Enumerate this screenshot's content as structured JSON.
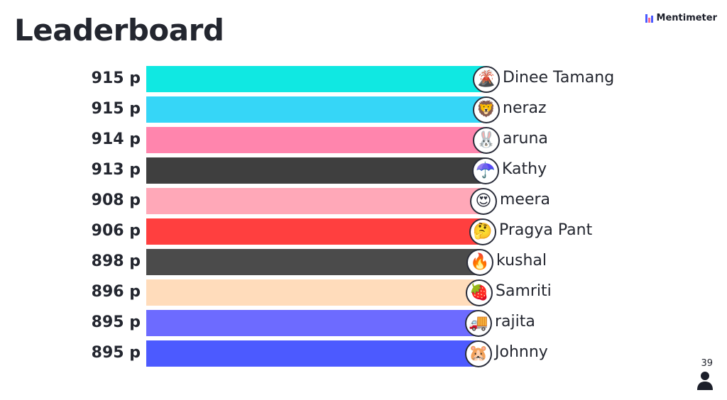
{
  "page": {
    "title": "Leaderboard",
    "brand": "Mentimeter",
    "participant_count": "39",
    "participant_icon": "person-icon"
  },
  "leaderboard": [
    {
      "score": "915 p",
      "name": "Dinee Tamang",
      "emoji": "🌋",
      "avatar_icon": "volcano-icon",
      "color": "#10e8e2",
      "bar_fraction": 1.0
    },
    {
      "score": "915 p",
      "name": "neraz",
      "emoji": "🦁",
      "avatar_icon": "lion-icon",
      "color": "#36d6f7",
      "bar_fraction": 1.0
    },
    {
      "score": "914 p",
      "name": "aruna",
      "emoji": "🐰",
      "avatar_icon": "rabbit-icon",
      "color": "#ff85ad",
      "bar_fraction": 0.999
    },
    {
      "score": "913 p",
      "name": "Kathy",
      "emoji": "☂️",
      "avatar_icon": "umbrella-icon",
      "color": "#3f3f3f",
      "bar_fraction": 0.998
    },
    {
      "score": "908 p",
      "name": "meera",
      "emoji": "😍",
      "avatar_icon": "heart-eyes-icon",
      "color": "#ffa8b8",
      "bar_fraction": 0.992
    },
    {
      "score": "906 p",
      "name": "Pragya Pant",
      "emoji": "🤔",
      "avatar_icon": "thinking-face-icon",
      "color": "#ff3f3f",
      "bar_fraction": 0.99
    },
    {
      "score": "898 p",
      "name": "kushal",
      "emoji": "🔥",
      "avatar_icon": "fire-icon",
      "color": "#4b4b4b",
      "bar_fraction": 0.981
    },
    {
      "score": "896 p",
      "name": "Samriti",
      "emoji": "🍓",
      "avatar_icon": "strawberry-icon",
      "color": "#ffdcbb",
      "bar_fraction": 0.979
    },
    {
      "score": "895 p",
      "name": "rajita",
      "emoji": "🚚",
      "avatar_icon": "truck-icon",
      "color": "#6d6bff",
      "bar_fraction": 0.978
    },
    {
      "score": "895 p",
      "name": "Johnny",
      "emoji": "🐹",
      "avatar_icon": "hamster-icon",
      "color": "#4c5aff",
      "bar_fraction": 0.978
    }
  ]
}
